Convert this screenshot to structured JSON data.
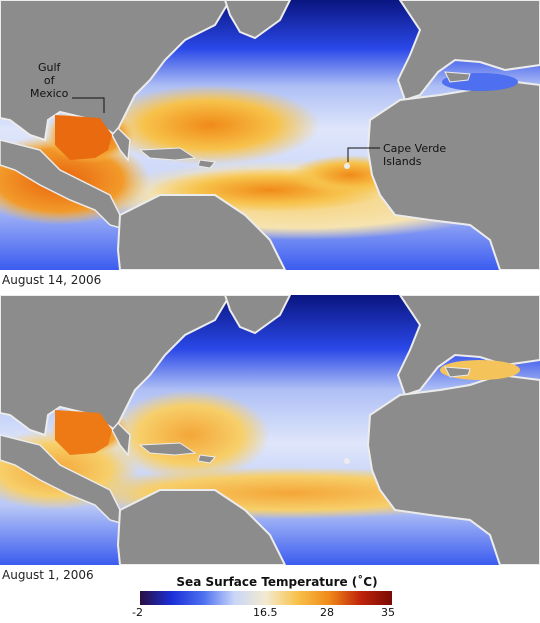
{
  "panels": [
    {
      "date_label": "August 14, 2006"
    },
    {
      "date_label": "August 1, 2006"
    }
  ],
  "annotations": {
    "gulf_of_mexico": [
      "Gulf",
      "of",
      "Mexico"
    ],
    "cape_verde": [
      "Cape Verde",
      "Islands"
    ]
  },
  "legend": {
    "title": "Sea Surface Temperature (˚C)",
    "ticks": [
      "-2",
      "16.5",
      "28",
      "35"
    ],
    "colors": [
      "#2a0f3f",
      "#1b2fd8",
      "#4d6ff0",
      "#c9d6f8",
      "#f4ead0",
      "#f7c24a",
      "#f08a18",
      "#c0240a",
      "#7a0a05"
    ]
  },
  "colors": {
    "land": "#8c8c8c",
    "coast": "#ececec",
    "ice_ocean": "#0a1580",
    "cold_ocean": "#2a48e8",
    "mid_ocean": "#aebff5",
    "warm_ocean": "#f7cf6a",
    "hot_ocean": "#f07e1c"
  }
}
